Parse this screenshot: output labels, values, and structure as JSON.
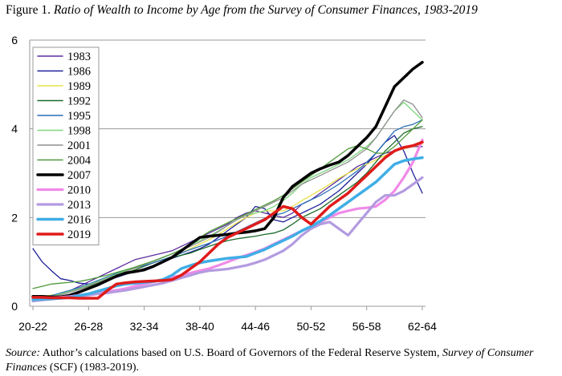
{
  "figure": {
    "prefix": "Figure 1.",
    "title": "Ratio of Wealth to Income by Age from the Survey of Consumer Finances, 1983-2019"
  },
  "source": {
    "label": "Source:",
    "text_a": " Author’s calculations based on U.S. Board of Governors of the Federal Reserve System, ",
    "title": "Survey of Consumer Finances",
    "text_b": " (SCF) (1983-2019)."
  },
  "chart_data": {
    "type": "line",
    "xlabel": "",
    "ylabel": "",
    "ylim": [
      0,
      6
    ],
    "yticks": [
      0,
      2,
      4,
      6
    ],
    "grid": "horizontal",
    "legend_position": "top-left",
    "x": [
      21,
      22,
      23,
      24,
      25,
      26,
      27,
      28,
      29,
      30,
      31,
      32,
      33,
      34,
      35,
      36,
      37,
      38,
      39,
      40,
      41,
      42,
      43,
      44,
      45,
      46,
      47,
      48,
      49,
      50,
      51,
      52,
      53,
      54,
      55,
      56,
      57,
      58,
      59,
      60,
      61,
      62,
      63
    ],
    "xtick_labels": [
      {
        "x": 21,
        "label": "20-22"
      },
      {
        "x": 27,
        "label": "26-28"
      },
      {
        "x": 33,
        "label": "32-34"
      },
      {
        "x": 39,
        "label": "38-40"
      },
      {
        "x": 45,
        "label": "44-46"
      },
      {
        "x": 51,
        "label": "50-52"
      },
      {
        "x": 57,
        "label": "56-58"
      },
      {
        "x": 63,
        "label": "62-64"
      }
    ],
    "series": [
      {
        "name": "1983",
        "color": "#5b2c9e",
        "width": 1.3,
        "values": [
          0.15,
          0.18,
          0.22,
          0.28,
          0.35,
          0.45,
          0.55,
          0.65,
          0.75,
          0.85,
          0.95,
          1.05,
          1.1,
          1.15,
          1.2,
          1.25,
          1.35,
          1.45,
          1.55,
          1.65,
          1.75,
          1.85,
          2.0,
          2.1,
          2.15,
          2.1,
          2.05,
          2.0,
          2.1,
          2.3,
          2.4,
          2.55,
          2.7,
          2.85,
          3.0,
          3.15,
          3.25,
          3.35,
          3.45,
          3.5,
          3.55,
          3.6,
          3.6
        ]
      },
      {
        "name": "1986",
        "color": "#1f1f9a",
        "width": 1.3,
        "values": [
          1.3,
          1.0,
          0.8,
          0.62,
          0.58,
          0.52,
          0.5,
          0.52,
          0.58,
          0.65,
          0.72,
          0.78,
          0.85,
          0.92,
          1.0,
          1.08,
          1.15,
          1.22,
          1.3,
          1.4,
          1.55,
          1.7,
          1.85,
          2.0,
          2.25,
          2.2,
          1.95,
          1.9,
          2.0,
          2.1,
          2.2,
          2.3,
          2.45,
          2.6,
          2.8,
          3.0,
          3.2,
          3.45,
          3.7,
          3.85,
          3.5,
          3.0,
          2.55
        ]
      },
      {
        "name": "1989",
        "color": "#e8e04a",
        "width": 1.3,
        "values": [
          0.2,
          0.22,
          0.25,
          0.28,
          0.32,
          0.38,
          0.45,
          0.52,
          0.6,
          0.68,
          0.75,
          0.82,
          0.9,
          0.98,
          1.05,
          1.12,
          1.2,
          1.3,
          1.4,
          1.5,
          1.62,
          1.75,
          1.88,
          2.0,
          2.1,
          2.15,
          2.15,
          2.15,
          2.25,
          2.38,
          2.5,
          2.62,
          2.75,
          2.88,
          3.0,
          3.1,
          3.2,
          3.3,
          3.4,
          3.5,
          3.55,
          3.6,
          3.65
        ]
      },
      {
        "name": "1992",
        "color": "#1a6b2a",
        "width": 1.3,
        "values": [
          0.1,
          0.15,
          0.2,
          0.26,
          0.32,
          0.38,
          0.45,
          0.52,
          0.6,
          0.68,
          0.75,
          0.82,
          0.9,
          0.98,
          1.05,
          1.1,
          1.15,
          1.2,
          1.28,
          1.35,
          1.42,
          1.48,
          1.52,
          1.55,
          1.58,
          1.62,
          1.65,
          1.72,
          1.85,
          2.0,
          2.1,
          2.2,
          2.35,
          2.5,
          2.65,
          2.8,
          3.0,
          3.25,
          3.5,
          3.7,
          3.9,
          4.0,
          4.05
        ]
      },
      {
        "name": "1995",
        "color": "#2a6fb8",
        "width": 1.3,
        "values": [
          0.18,
          0.2,
          0.24,
          0.3,
          0.36,
          0.42,
          0.5,
          0.58,
          0.66,
          0.74,
          0.8,
          0.86,
          0.92,
          0.98,
          1.05,
          1.12,
          1.2,
          1.28,
          1.35,
          1.42,
          1.5,
          1.58,
          1.68,
          1.78,
          1.88,
          1.98,
          2.05,
          2.1,
          2.2,
          2.3,
          2.4,
          2.5,
          2.62,
          2.75,
          2.9,
          3.05,
          3.25,
          3.45,
          3.7,
          3.95,
          4.05,
          4.1,
          4.2
        ]
      },
      {
        "name": "1998",
        "color": "#7fd67f",
        "width": 1.3,
        "values": [
          0.15,
          0.18,
          0.22,
          0.28,
          0.34,
          0.4,
          0.48,
          0.56,
          0.64,
          0.72,
          0.8,
          0.88,
          0.95,
          1.02,
          1.1,
          1.18,
          1.28,
          1.38,
          1.48,
          1.58,
          1.7,
          1.82,
          1.95,
          2.05,
          2.1,
          2.15,
          2.25,
          2.38,
          2.55,
          2.75,
          2.9,
          3.0,
          3.1,
          3.2,
          3.3,
          3.45,
          3.6,
          3.8,
          4.1,
          4.4,
          4.6,
          4.4,
          4.2
        ]
      },
      {
        "name": "2001",
        "color": "#8f8f8f",
        "width": 1.3,
        "values": [
          0.12,
          0.15,
          0.2,
          0.26,
          0.32,
          0.38,
          0.46,
          0.54,
          0.62,
          0.7,
          0.78,
          0.86,
          0.94,
          1.02,
          1.1,
          1.18,
          1.26,
          1.35,
          1.45,
          1.55,
          1.68,
          1.82,
          1.95,
          2.05,
          2.15,
          2.25,
          2.35,
          2.45,
          2.6,
          2.75,
          2.85,
          2.95,
          3.05,
          3.15,
          3.25,
          3.4,
          3.55,
          3.8,
          4.1,
          4.4,
          4.65,
          4.55,
          4.25
        ]
      },
      {
        "name": "2004",
        "color": "#4f9a3a",
        "width": 1.3,
        "values": [
          0.4,
          0.45,
          0.5,
          0.52,
          0.54,
          0.56,
          0.6,
          0.65,
          0.7,
          0.76,
          0.82,
          0.88,
          0.95,
          1.02,
          1.1,
          1.18,
          1.28,
          1.4,
          1.55,
          1.68,
          1.78,
          1.88,
          1.98,
          2.08,
          2.18,
          2.28,
          2.38,
          2.5,
          2.65,
          2.8,
          2.95,
          3.1,
          3.25,
          3.4,
          3.55,
          3.62,
          3.55,
          3.45,
          3.45,
          3.6,
          3.8,
          4.0,
          4.2
        ]
      },
      {
        "name": "2007",
        "color": "#000000",
        "width": 3.5,
        "values": [
          0.22,
          0.22,
          0.21,
          0.21,
          0.25,
          0.32,
          0.4,
          0.48,
          0.58,
          0.68,
          0.75,
          0.78,
          0.82,
          0.9,
          1.0,
          1.1,
          1.25,
          1.4,
          1.55,
          1.58,
          1.6,
          1.62,
          1.65,
          1.67,
          1.7,
          1.75,
          2.0,
          2.45,
          2.7,
          2.85,
          3.0,
          3.1,
          3.18,
          3.25,
          3.4,
          3.6,
          3.8,
          4.05,
          4.5,
          4.95,
          5.15,
          5.35,
          5.5
        ]
      },
      {
        "name": "2010",
        "color": "#f08ae8",
        "width": 3.2,
        "values": [
          0.18,
          0.18,
          0.19,
          0.2,
          0.22,
          0.25,
          0.28,
          0.3,
          0.33,
          0.36,
          0.4,
          0.45,
          0.5,
          0.55,
          0.6,
          0.65,
          0.7,
          0.75,
          0.8,
          0.85,
          0.92,
          1.0,
          1.08,
          1.15,
          1.22,
          1.3,
          1.4,
          1.5,
          1.6,
          1.7,
          1.8,
          1.9,
          2.0,
          2.1,
          2.15,
          2.2,
          2.22,
          2.25,
          2.4,
          2.6,
          2.9,
          3.25,
          3.75
        ]
      },
      {
        "name": "2013",
        "color": "#b39be0",
        "width": 3.2,
        "values": [
          0.12,
          0.14,
          0.16,
          0.18,
          0.2,
          0.22,
          0.25,
          0.28,
          0.3,
          0.33,
          0.36,
          0.4,
          0.44,
          0.48,
          0.52,
          0.58,
          0.64,
          0.7,
          0.76,
          0.8,
          0.82,
          0.84,
          0.88,
          0.92,
          0.98,
          1.05,
          1.15,
          1.25,
          1.4,
          1.6,
          1.75,
          1.85,
          1.9,
          1.75,
          1.6,
          1.85,
          2.1,
          2.35,
          2.5,
          2.5,
          2.6,
          2.75,
          2.9
        ]
      },
      {
        "name": "2016",
        "color": "#3faee6",
        "width": 3.5,
        "values": [
          0.15,
          0.16,
          0.17,
          0.18,
          0.2,
          0.24,
          0.28,
          0.34,
          0.4,
          0.46,
          0.5,
          0.52,
          0.54,
          0.56,
          0.6,
          0.7,
          0.85,
          0.92,
          0.98,
          1.02,
          1.05,
          1.08,
          1.1,
          1.12,
          1.2,
          1.28,
          1.38,
          1.48,
          1.58,
          1.7,
          1.8,
          1.92,
          2.05,
          2.2,
          2.35,
          2.5,
          2.65,
          2.8,
          3.0,
          3.2,
          3.28,
          3.32,
          3.35
        ]
      },
      {
        "name": "2019",
        "color": "#e01b1b",
        "width": 3.5,
        "values": [
          0.2,
          0.2,
          0.19,
          0.19,
          0.19,
          0.18,
          0.18,
          0.18,
          0.35,
          0.5,
          0.53,
          0.55,
          0.56,
          0.57,
          0.58,
          0.6,
          0.7,
          0.85,
          1.0,
          1.2,
          1.4,
          1.55,
          1.65,
          1.75,
          1.85,
          1.95,
          2.1,
          2.25,
          2.2,
          2.0,
          1.85,
          2.05,
          2.25,
          2.4,
          2.55,
          2.75,
          2.95,
          3.15,
          3.35,
          3.5,
          3.58,
          3.62,
          3.7
        ]
      }
    ]
  }
}
